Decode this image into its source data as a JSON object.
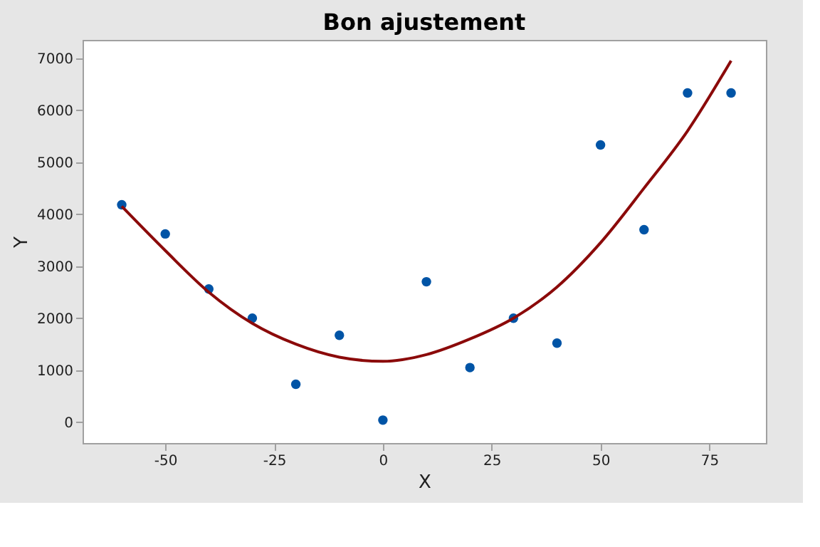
{
  "chart_data": {
    "type": "scatter",
    "title": "Bon ajustement",
    "xlabel": "X",
    "ylabel": "Y",
    "x": [
      -60,
      -50,
      -40,
      -30,
      -20,
      -10,
      0,
      10,
      20,
      30,
      40,
      50,
      60,
      70,
      80
    ],
    "series": [
      {
        "color": "#0054a6",
        "marker": "circle",
        "values": [
          4180,
          3620,
          2560,
          2000,
          730,
          1670,
          40,
          2700,
          1050,
          2000,
          1520,
          5330,
          3700,
          6330,
          6330
        ]
      },
      {
        "type": "line",
        "color": "#8b0a0a",
        "line_style": "solid",
        "x": [
          -60,
          -50,
          -40,
          -30,
          -20,
          -10,
          0,
          10,
          20,
          30,
          40,
          50,
          60,
          70,
          80
        ],
        "values": [
          4150,
          3300,
          2500,
          1900,
          1500,
          1250,
          1170,
          1300,
          1600,
          2000,
          2600,
          3450,
          4500,
          5600,
          6950
        ]
      }
    ],
    "xlim": [
      -69,
      88
    ],
    "xticks": [
      -50,
      -25,
      0,
      25,
      50,
      75
    ],
    "ylim": [
      -400,
      7350
    ],
    "yticks": [
      0,
      1000,
      2000,
      3000,
      4000,
      5000,
      6000,
      7000
    ],
    "grid": false
  }
}
